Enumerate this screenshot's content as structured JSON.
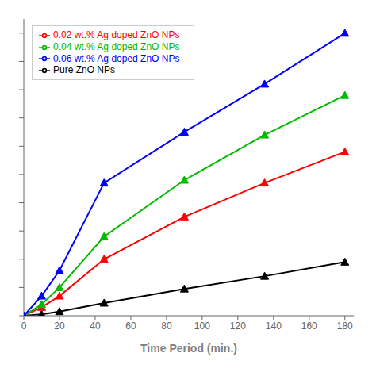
{
  "chart_data": {
    "type": "line",
    "x": [
      0,
      10,
      20,
      45,
      90,
      135,
      180
    ],
    "series": [
      {
        "name": "Pure ZnO NPs",
        "color": "#000000",
        "values": [
          0,
          0.005,
          0.015,
          0.045,
          0.095,
          0.14,
          0.19
        ]
      },
      {
        "name": "0.02 wt.% Ag doped ZnO NPs",
        "color": "#ff0000",
        "values": [
          0,
          0.03,
          0.07,
          0.2,
          0.35,
          0.47,
          0.58
        ]
      },
      {
        "name": "0.04 wt.% Ag doped ZnO NPs",
        "color": "#00bb00",
        "values": [
          0,
          0.04,
          0.1,
          0.28,
          0.48,
          0.64,
          0.78
        ]
      },
      {
        "name": "0.06 wt.% Ag doped ZnO NPs",
        "color": "#0000ff",
        "values": [
          0,
          0.07,
          0.16,
          0.47,
          0.65,
          0.82,
          1.0
        ]
      }
    ],
    "xlabel": "Time Period (min.)",
    "xlim": [
      0,
      185
    ],
    "ylim": [
      0,
      1.05
    ],
    "xticks": [
      0,
      20,
      40,
      60,
      80,
      100,
      120,
      140,
      160,
      180
    ],
    "yticks": [
      0,
      0.1,
      0.2,
      0.3,
      0.4,
      0.5,
      0.6,
      0.7,
      0.8,
      0.9,
      1
    ],
    "tick_labels": "x",
    "grid": false,
    "legend": "upper left",
    "marker": "triangle"
  }
}
